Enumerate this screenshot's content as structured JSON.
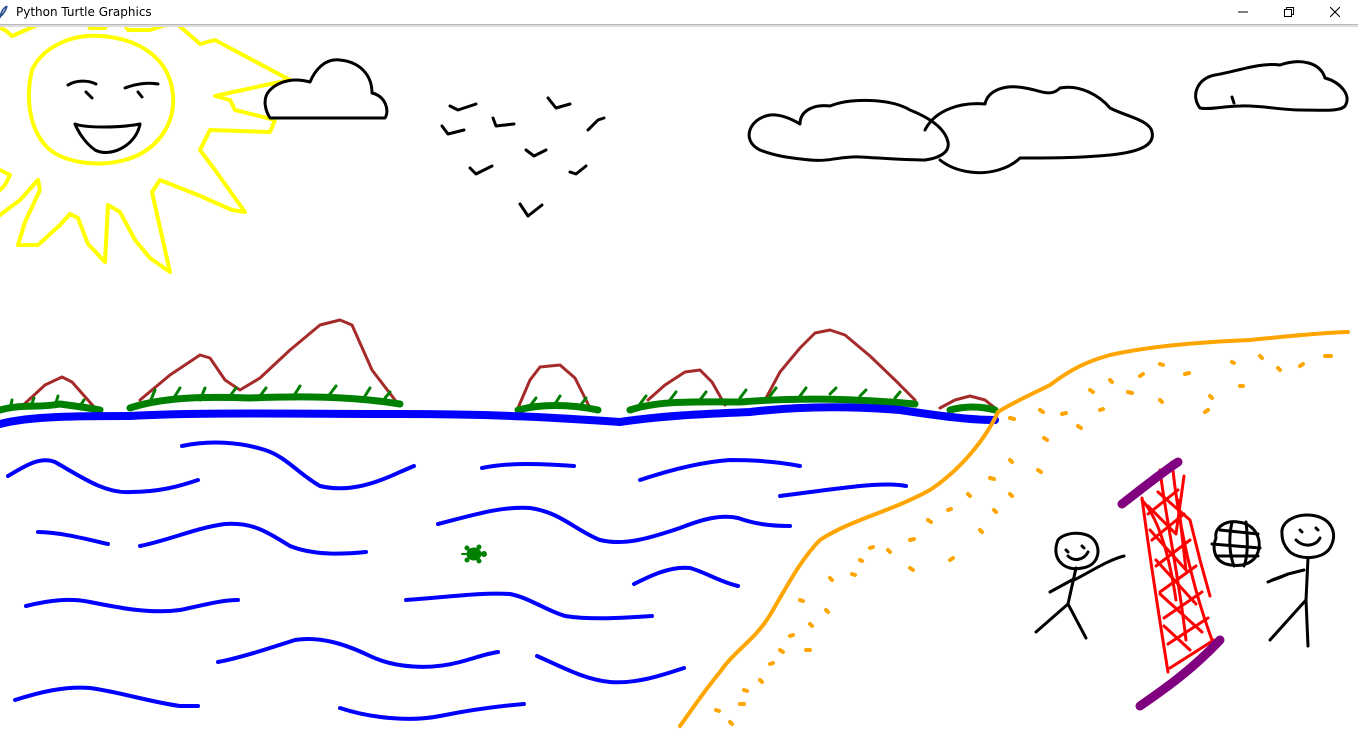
{
  "window": {
    "title": "Python Turtle Graphics",
    "icon": "feather-icon",
    "controls": [
      "minimize-icon",
      "restore-icon",
      "close-icon"
    ]
  },
  "colors": {
    "sun": "#ffff00",
    "cloud": "#000000",
    "bird": "#000000",
    "mountain": "#a52a2a",
    "grass": "#008000",
    "water": "#0000ff",
    "sand": "#ffa500",
    "net": "#ff0000",
    "pole": "#800080",
    "turtle": "#008000",
    "figure": "#000000"
  }
}
